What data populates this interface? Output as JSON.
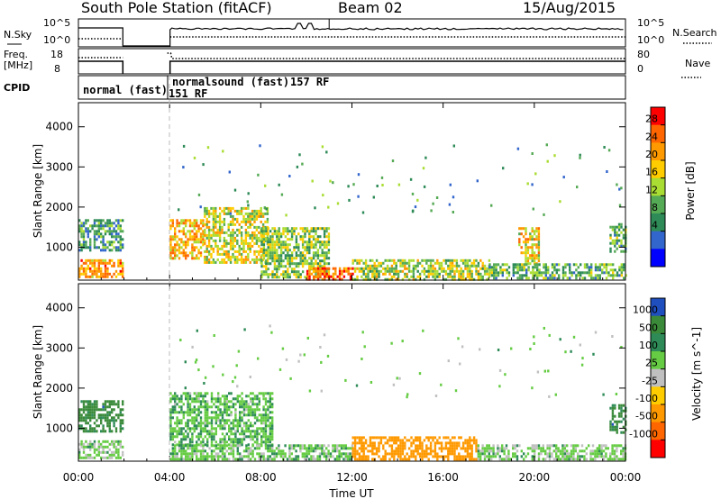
{
  "header": {
    "station": "South Pole Station (fitACF)",
    "beam": "Beam 02",
    "date": "15/Aug/2015"
  },
  "status_panels": {
    "nsky_label": "N.Sky",
    "nsky_ticks": [
      "10^5",
      "10^0"
    ],
    "nsearch_label": "N.Search",
    "freq_label_1": "Freq.",
    "freq_label_2": "[MHz]",
    "freq_ticks": [
      "18",
      "8"
    ],
    "nave_ticks": [
      "80",
      "0"
    ],
    "nave_label": "Nave",
    "cpid_label": "CPID",
    "cpid_segments": [
      {
        "name": "normal (fast)",
        "code": "151",
        "rf": "RF"
      },
      {
        "name": "normalsound (fast)",
        "code": "157",
        "rf": "RF"
      }
    ]
  },
  "chart_data": [
    {
      "type": "heatmap",
      "panel": "power",
      "ylabel": "Slant Range [km]",
      "yticks": [
        "1000",
        "2000",
        "3000",
        "4000"
      ],
      "ylim": [
        180,
        4600
      ],
      "xlim": [
        0,
        24
      ],
      "colorbar_label": "Power [dB]",
      "colorbar_ticks": [
        "28",
        "24",
        "20",
        "16",
        "12",
        "8",
        "4"
      ],
      "colorbar_colors": [
        "#ff0000",
        "#ff6600",
        "#ff9900",
        "#ffcc00",
        "#aadd33",
        "#55aa55",
        "#2e8b57",
        "#3366cc",
        "#0000ff"
      ],
      "data_gaps_hours": [
        [
          2.0,
          4.0
        ]
      ],
      "echo_regions": [
        {
          "t": [
            0.0,
            1.9
          ],
          "r": [
            250,
            700
          ],
          "value_db": 24
        },
        {
          "t": [
            0.0,
            1.9
          ],
          "r": [
            900,
            1700
          ],
          "value_db": 10
        },
        {
          "t": [
            4.0,
            5.5
          ],
          "r": [
            700,
            1700
          ],
          "value_db": 22
        },
        {
          "t": [
            5.5,
            8.3
          ],
          "r": [
            600,
            2000
          ],
          "value_db": 18
        },
        {
          "t": [
            8.0,
            11.0
          ],
          "r": [
            250,
            1500
          ],
          "value_db": 14
        },
        {
          "t": [
            10.0,
            12.0
          ],
          "r": [
            200,
            500
          ],
          "value_db": 28
        },
        {
          "t": [
            12.0,
            18.0
          ],
          "r": [
            200,
            700
          ],
          "value_db": 16
        },
        {
          "t": [
            19.3,
            20.2
          ],
          "r": [
            600,
            1500
          ],
          "value_db": 20
        },
        {
          "t": [
            18.0,
            24.0
          ],
          "r": [
            200,
            600
          ],
          "value_db": 12
        },
        {
          "t": [
            23.3,
            24.0
          ],
          "r": [
            900,
            1600
          ],
          "value_db": 12
        }
      ]
    },
    {
      "type": "heatmap",
      "panel": "velocity",
      "ylabel": "Slant Range [km]",
      "yticks": [
        "1000",
        "2000",
        "3000",
        "4000"
      ],
      "ylim": [
        180,
        4600
      ],
      "xlim": [
        0,
        24
      ],
      "xticks": [
        "00:00",
        "04:00",
        "08:00",
        "12:00",
        "16:00",
        "20:00",
        "00:00"
      ],
      "xlabel": "Time UT",
      "colorbar_label": "Velocity [m s^-1]",
      "colorbar_ticks": [
        "1000",
        "500",
        "100",
        "25",
        "-25",
        "-100",
        "-500",
        "-1000"
      ],
      "colorbar_colors": [
        "#1f4fbf",
        "#3a8a3a",
        "#2e8b57",
        "#66cc44",
        "#c0c0c0",
        "#ffcc00",
        "#ff9900",
        "#ff6600",
        "#ff0000"
      ],
      "data_gaps_hours": [
        [
          2.0,
          4.0
        ]
      ],
      "echo_regions": [
        {
          "t": [
            0.0,
            1.9
          ],
          "r": [
            900,
            1700
          ],
          "value_ms": 700
        },
        {
          "t": [
            0.0,
            1.9
          ],
          "r": [
            250,
            700
          ],
          "value_ms": 50
        },
        {
          "t": [
            4.0,
            8.5
          ],
          "r": [
            600,
            1900
          ],
          "value_ms": 80
        },
        {
          "t": [
            4.0,
            12.0
          ],
          "r": [
            200,
            600
          ],
          "value_ms": 60
        },
        {
          "t": [
            12.0,
            17.5
          ],
          "r": [
            200,
            800
          ],
          "value_ms": -200
        },
        {
          "t": [
            17.5,
            24.0
          ],
          "r": [
            200,
            600
          ],
          "value_ms": 50
        },
        {
          "t": [
            23.3,
            24.0
          ],
          "r": [
            900,
            1600
          ],
          "value_ms": 700
        }
      ]
    }
  ]
}
